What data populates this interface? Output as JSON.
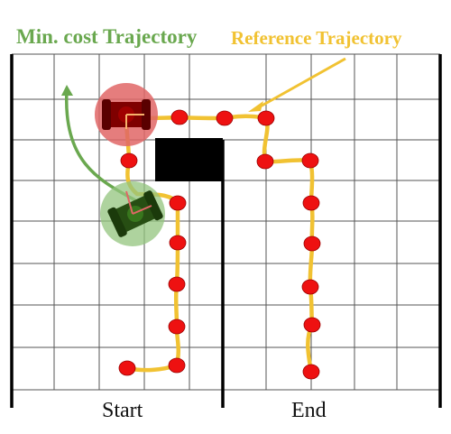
{
  "labels": {
    "min_cost": "Min. cost Trajectory",
    "reference": "Reference Trajectory",
    "start": "Start",
    "end": "End"
  },
  "colors": {
    "min_cost": "#6aa84f",
    "reference": "#f1c232",
    "waypoint": "#ee1111",
    "obstacle": "#000000",
    "robot_current": "#e06666",
    "robot_current_body": "#7f0000",
    "robot_start": "#93c47d",
    "robot_start_body": "#274e13",
    "grid": "#555555"
  },
  "icons": {
    "robot_current": "robot-icon",
    "robot_start": "robot-icon",
    "obstacle": "obstacle-block"
  }
}
